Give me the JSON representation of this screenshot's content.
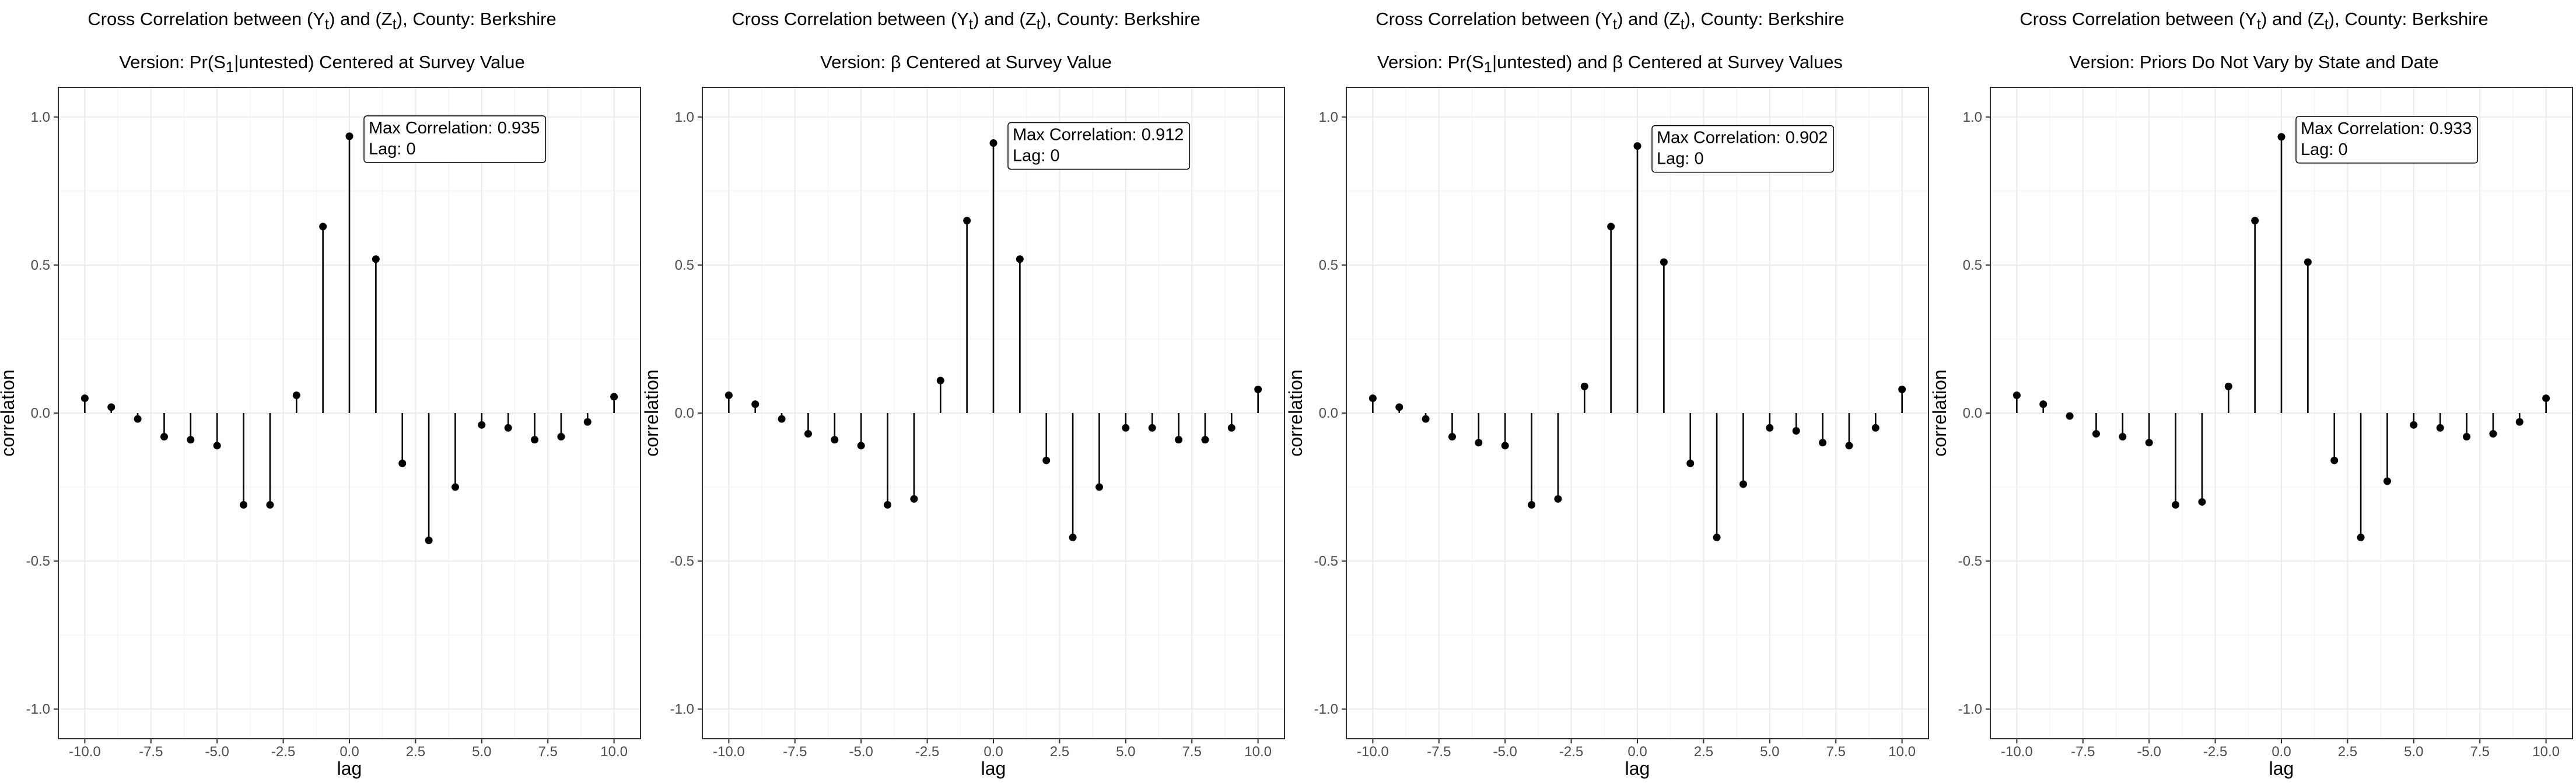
{
  "figure": {
    "panels": [
      {
        "title_line1_pre": "Cross Correlation between (Y",
        "title_line1_sub1": "t",
        "title_line1_mid": ") and (Z",
        "title_line1_sub2": "t",
        "title_line1_post": "), County: Berkshire",
        "title_line2_pre": "Version: Pr(S",
        "title_line2_sub": "1",
        "title_line2_post": "|untested) Centered at Survey Value"
      },
      {
        "title_line1_pre": "Cross Correlation between (Y",
        "title_line1_sub1": "t",
        "title_line1_mid": ") and (Z",
        "title_line1_sub2": "t",
        "title_line1_post": "), County: Berkshire",
        "title_line2_pre": "Version: β Centered at Survey Value",
        "title_line2_sub": "",
        "title_line2_post": ""
      },
      {
        "title_line1_pre": "Cross Correlation between (Y",
        "title_line1_sub1": "t",
        "title_line1_mid": ") and (Z",
        "title_line1_sub2": "t",
        "title_line1_post": "), County: Berkshire",
        "title_line2_pre": "Version: Pr(S",
        "title_line2_sub": "1",
        "title_line2_post": "|untested) and β Centered at Survey Values"
      },
      {
        "title_line1_pre": "Cross Correlation between (Y",
        "title_line1_sub1": "t",
        "title_line1_mid": ") and (Z",
        "title_line1_sub2": "t",
        "title_line1_post": "), County: Berkshire",
        "title_line2_pre": "Version: Priors Do Not Vary by State and Date",
        "title_line2_sub": "",
        "title_line2_post": ""
      }
    ]
  },
  "chart_data": [
    {
      "type": "stem",
      "xlabel": "lag",
      "ylabel": "correlation",
      "xlim": [
        -10,
        10
      ],
      "ylim": [
        -1.0,
        1.0
      ],
      "xticks": [
        "-10.0",
        "-7.5",
        "-5.0",
        "-2.5",
        "0.0",
        "2.5",
        "5.0",
        "7.5",
        "10.0"
      ],
      "yticks": [
        "-1.0",
        "-0.5",
        "0.0",
        "0.5",
        "1.0"
      ],
      "grid": true,
      "x": [
        -10,
        -9,
        -8,
        -7,
        -6,
        -5,
        -4,
        -3,
        -2,
        -1,
        0,
        1,
        2,
        3,
        4,
        5,
        6,
        7,
        8,
        9,
        10
      ],
      "values": [
        0.05,
        0.02,
        -0.02,
        -0.08,
        -0.09,
        -0.11,
        -0.31,
        -0.31,
        0.06,
        0.63,
        0.935,
        0.52,
        -0.17,
        -0.43,
        -0.25,
        -0.04,
        -0.05,
        -0.09,
        -0.08,
        -0.03,
        0.055
      ],
      "annotation_line1": "Max Correlation: 0.935",
      "annotation_line2": "Lag: 0"
    },
    {
      "type": "stem",
      "xlabel": "lag",
      "ylabel": "correlation",
      "xlim": [
        -10,
        10
      ],
      "ylim": [
        -1.0,
        1.0
      ],
      "xticks": [
        "-10.0",
        "-7.5",
        "-5.0",
        "-2.5",
        "0.0",
        "2.5",
        "5.0",
        "7.5",
        "10.0"
      ],
      "yticks": [
        "-1.0",
        "-0.5",
        "0.0",
        "0.5",
        "1.0"
      ],
      "grid": true,
      "x": [
        -10,
        -9,
        -8,
        -7,
        -6,
        -5,
        -4,
        -3,
        -2,
        -1,
        0,
        1,
        2,
        3,
        4,
        5,
        6,
        7,
        8,
        9,
        10
      ],
      "values": [
        0.06,
        0.03,
        -0.02,
        -0.07,
        -0.09,
        -0.11,
        -0.31,
        -0.29,
        0.11,
        0.65,
        0.912,
        0.52,
        -0.16,
        -0.42,
        -0.25,
        -0.05,
        -0.05,
        -0.09,
        -0.09,
        -0.05,
        0.08
      ],
      "annotation_line1": "Max Correlation: 0.912",
      "annotation_line2": "Lag: 0"
    },
    {
      "type": "stem",
      "xlabel": "lag",
      "ylabel": "correlation",
      "xlim": [
        -10,
        10
      ],
      "ylim": [
        -1.0,
        1.0
      ],
      "xticks": [
        "-10.0",
        "-7.5",
        "-5.0",
        "-2.5",
        "0.0",
        "2.5",
        "5.0",
        "7.5",
        "10.0"
      ],
      "yticks": [
        "-1.0",
        "-0.5",
        "0.0",
        "0.5",
        "1.0"
      ],
      "grid": true,
      "x": [
        -10,
        -9,
        -8,
        -7,
        -6,
        -5,
        -4,
        -3,
        -2,
        -1,
        0,
        1,
        2,
        3,
        4,
        5,
        6,
        7,
        8,
        9,
        10
      ],
      "values": [
        0.05,
        0.02,
        -0.02,
        -0.08,
        -0.1,
        -0.11,
        -0.31,
        -0.29,
        0.09,
        0.63,
        0.902,
        0.51,
        -0.17,
        -0.42,
        -0.24,
        -0.05,
        -0.06,
        -0.1,
        -0.11,
        -0.05,
        0.08
      ],
      "annotation_line1": "Max Correlation: 0.902",
      "annotation_line2": "Lag: 0"
    },
    {
      "type": "stem",
      "xlabel": "lag",
      "ylabel": "correlation",
      "xlim": [
        -10,
        10
      ],
      "ylim": [
        -1.0,
        1.0
      ],
      "xticks": [
        "-10.0",
        "-7.5",
        "-5.0",
        "-2.5",
        "0.0",
        "2.5",
        "5.0",
        "7.5",
        "10.0"
      ],
      "yticks": [
        "-1.0",
        "-0.5",
        "0.0",
        "0.5",
        "1.0"
      ],
      "grid": true,
      "x": [
        -10,
        -9,
        -8,
        -7,
        -6,
        -5,
        -4,
        -3,
        -2,
        -1,
        0,
        1,
        2,
        3,
        4,
        5,
        6,
        7,
        8,
        9,
        10
      ],
      "values": [
        0.06,
        0.03,
        -0.01,
        -0.07,
        -0.08,
        -0.1,
        -0.31,
        -0.3,
        0.09,
        0.65,
        0.933,
        0.51,
        -0.16,
        -0.42,
        -0.23,
        -0.04,
        -0.05,
        -0.08,
        -0.07,
        -0.03,
        0.05
      ],
      "annotation_line1": "Max Correlation: 0.933",
      "annotation_line2": "Lag: 0"
    }
  ]
}
